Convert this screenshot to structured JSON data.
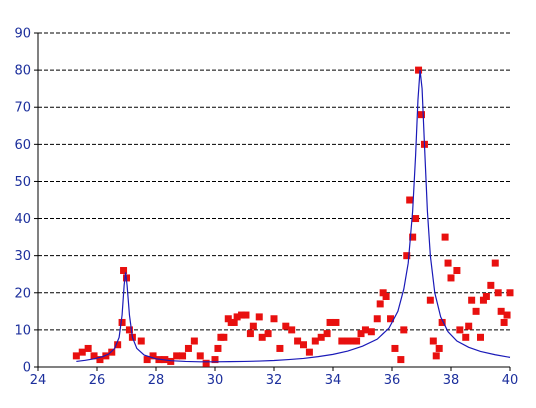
{
  "chart_data": {
    "type": "scatter",
    "title": "",
    "xlabel": "",
    "ylabel": "",
    "xlim": [
      24,
      40
    ],
    "ylim": [
      0,
      90
    ],
    "x_ticks": [
      24,
      26,
      28,
      30,
      32,
      34,
      36,
      38,
      40
    ],
    "y_ticks": [
      0,
      10,
      20,
      30,
      40,
      50,
      60,
      70,
      80,
      90
    ],
    "grid": {
      "horizontal": true,
      "vertical": false,
      "style": "dashed"
    },
    "legend": "none",
    "colors": {
      "points": "#e8100f",
      "fit_line": "#1a1ab8",
      "tick_labels": "#1c2f9c",
      "axes": "#000000"
    },
    "series": [
      {
        "kind": "points",
        "marker": "square",
        "points": [
          [
            25.3,
            3
          ],
          [
            25.5,
            4
          ],
          [
            25.7,
            5
          ],
          [
            25.9,
            3
          ],
          [
            26.1,
            2
          ],
          [
            26.3,
            3
          ],
          [
            26.5,
            4
          ],
          [
            26.7,
            6
          ],
          [
            26.85,
            12
          ],
          [
            26.9,
            26
          ],
          [
            27.0,
            24
          ],
          [
            27.1,
            10
          ],
          [
            27.2,
            8
          ],
          [
            27.5,
            7
          ],
          [
            27.7,
            2
          ],
          [
            27.9,
            3
          ],
          [
            28.1,
            2
          ],
          [
            28.3,
            2
          ],
          [
            28.5,
            1.5
          ],
          [
            28.7,
            3
          ],
          [
            28.9,
            3
          ],
          [
            29.1,
            5
          ],
          [
            29.3,
            7
          ],
          [
            29.5,
            3
          ],
          [
            29.7,
            1
          ],
          [
            30.0,
            2
          ],
          [
            30.1,
            5
          ],
          [
            30.2,
            8
          ],
          [
            30.3,
            8
          ],
          [
            30.45,
            13
          ],
          [
            30.55,
            12
          ],
          [
            30.65,
            12
          ],
          [
            30.75,
            13.5
          ],
          [
            30.9,
            14
          ],
          [
            31.05,
            14
          ],
          [
            31.2,
            9
          ],
          [
            31.3,
            11
          ],
          [
            31.5,
            13.5
          ],
          [
            31.6,
            8
          ],
          [
            31.8,
            9
          ],
          [
            32.0,
            13
          ],
          [
            32.2,
            5
          ],
          [
            32.4,
            11
          ],
          [
            32.6,
            10
          ],
          [
            32.8,
            7
          ],
          [
            33.0,
            6
          ],
          [
            33.2,
            4
          ],
          [
            33.4,
            7
          ],
          [
            33.6,
            8
          ],
          [
            33.8,
            9
          ],
          [
            33.9,
            12
          ],
          [
            34.1,
            12
          ],
          [
            34.3,
            7
          ],
          [
            34.5,
            7
          ],
          [
            34.7,
            7
          ],
          [
            34.8,
            7
          ],
          [
            34.95,
            9
          ],
          [
            35.1,
            10
          ],
          [
            35.3,
            9.5
          ],
          [
            35.5,
            13
          ],
          [
            35.6,
            17
          ],
          [
            35.7,
            20
          ],
          [
            35.8,
            19
          ],
          [
            35.95,
            13
          ],
          [
            36.1,
            5
          ],
          [
            36.3,
            2
          ],
          [
            36.4,
            10
          ],
          [
            36.5,
            30
          ],
          [
            36.6,
            45
          ],
          [
            36.7,
            35
          ],
          [
            36.8,
            40
          ],
          [
            36.9,
            80
          ],
          [
            37.0,
            68
          ],
          [
            37.1,
            60
          ],
          [
            37.3,
            18
          ],
          [
            37.4,
            7
          ],
          [
            37.5,
            3
          ],
          [
            37.6,
            5
          ],
          [
            37.7,
            12
          ],
          [
            37.8,
            35
          ],
          [
            37.9,
            28
          ],
          [
            38.0,
            24
          ],
          [
            38.2,
            26
          ],
          [
            38.3,
            10
          ],
          [
            38.5,
            8
          ],
          [
            38.6,
            11
          ],
          [
            38.7,
            18
          ],
          [
            38.85,
            15
          ],
          [
            39.0,
            8
          ],
          [
            39.1,
            18
          ],
          [
            39.2,
            19
          ],
          [
            39.35,
            22
          ],
          [
            39.5,
            28
          ],
          [
            39.6,
            20
          ],
          [
            39.7,
            15
          ],
          [
            39.8,
            12
          ],
          [
            39.9,
            14
          ],
          [
            40.0,
            20
          ]
        ]
      },
      {
        "kind": "line",
        "points": [
          [
            25.3,
            1.5
          ],
          [
            25.6,
            1.8
          ],
          [
            25.9,
            2.2
          ],
          [
            26.2,
            2.8
          ],
          [
            26.4,
            3.5
          ],
          [
            26.6,
            5.0
          ],
          [
            26.75,
            8.0
          ],
          [
            26.85,
            14.0
          ],
          [
            26.92,
            22.0
          ],
          [
            26.97,
            25.5
          ],
          [
            27.02,
            22.0
          ],
          [
            27.1,
            14.0
          ],
          [
            27.2,
            8.0
          ],
          [
            27.35,
            5.0
          ],
          [
            27.6,
            3.2
          ],
          [
            28.0,
            2.2
          ],
          [
            28.5,
            1.7
          ],
          [
            29.0,
            1.5
          ],
          [
            29.5,
            1.4
          ],
          [
            30.0,
            1.4
          ],
          [
            30.5,
            1.45
          ],
          [
            31.0,
            1.5
          ],
          [
            31.5,
            1.6
          ],
          [
            32.0,
            1.75
          ],
          [
            32.5,
            2.0
          ],
          [
            33.0,
            2.3
          ],
          [
            33.5,
            2.8
          ],
          [
            34.0,
            3.4
          ],
          [
            34.5,
            4.3
          ],
          [
            35.0,
            5.6
          ],
          [
            35.5,
            7.5
          ],
          [
            35.9,
            10.5
          ],
          [
            36.2,
            15.0
          ],
          [
            36.4,
            21.0
          ],
          [
            36.55,
            28.0
          ],
          [
            36.7,
            42.0
          ],
          [
            36.8,
            57.0
          ],
          [
            36.88,
            72.0
          ],
          [
            36.95,
            80.0
          ],
          [
            37.02,
            75.0
          ],
          [
            37.1,
            60.0
          ],
          [
            37.2,
            42.0
          ],
          [
            37.3,
            30.0
          ],
          [
            37.45,
            20.0
          ],
          [
            37.65,
            13.5
          ],
          [
            37.9,
            9.5
          ],
          [
            38.2,
            7.0
          ],
          [
            38.6,
            5.3
          ],
          [
            39.0,
            4.2
          ],
          [
            39.5,
            3.3
          ],
          [
            40.0,
            2.6
          ]
        ]
      }
    ]
  }
}
